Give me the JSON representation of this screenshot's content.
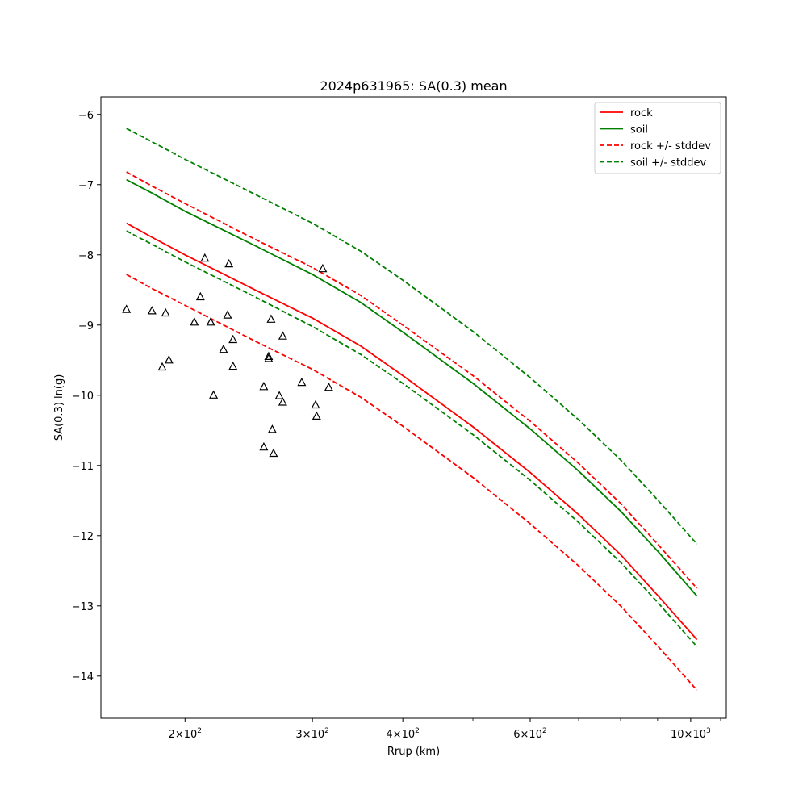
{
  "chart_data": {
    "type": "line",
    "title": "2024p631965: SA(0.3) mean",
    "xlabel": "Rrup (km)",
    "ylabel": "SA(0.3) ln(g)",
    "x_scale": "log",
    "xlim": [
      153,
      1120
    ],
    "ylim": [
      -14.6,
      -5.75
    ],
    "grid": false,
    "legend_position": "top-right",
    "x_ticks": [
      {
        "value": 200,
        "base": "2",
        "exp": "2"
      },
      {
        "value": 300,
        "base": "3",
        "exp": "2"
      },
      {
        "value": 400,
        "base": "4",
        "exp": "2"
      },
      {
        "value": 600,
        "base": "6",
        "exp": "2"
      },
      {
        "value": 1000,
        "base": "10",
        "exp": "3"
      }
    ],
    "y_ticks": [
      -6,
      -7,
      -8,
      -9,
      -10,
      -11,
      -12,
      -13,
      -14
    ],
    "series": [
      {
        "name": "rock",
        "color": "#ff0000",
        "dashed": false,
        "points": [
          [
            166,
            -7.55
          ],
          [
            180,
            -7.75
          ],
          [
            200,
            -8.0
          ],
          [
            250,
            -8.5
          ],
          [
            300,
            -8.9
          ],
          [
            350,
            -9.3
          ],
          [
            400,
            -9.72
          ],
          [
            500,
            -10.45
          ],
          [
            600,
            -11.1
          ],
          [
            700,
            -11.7
          ],
          [
            800,
            -12.27
          ],
          [
            900,
            -12.85
          ],
          [
            1020,
            -13.48
          ]
        ]
      },
      {
        "name": "soil",
        "color": "#008000",
        "dashed": false,
        "points": [
          [
            166,
            -6.93
          ],
          [
            180,
            -7.12
          ],
          [
            200,
            -7.38
          ],
          [
            250,
            -7.87
          ],
          [
            300,
            -8.28
          ],
          [
            350,
            -8.68
          ],
          [
            400,
            -9.1
          ],
          [
            500,
            -9.83
          ],
          [
            600,
            -10.48
          ],
          [
            700,
            -11.08
          ],
          [
            800,
            -11.65
          ],
          [
            900,
            -12.22
          ],
          [
            1020,
            -12.86
          ]
        ]
      },
      {
        "name": "rock +/- stddev",
        "color": "#ff0000",
        "dashed": true,
        "points": [
          [
            166,
            -6.82
          ],
          [
            180,
            -7.02
          ],
          [
            200,
            -7.27
          ],
          [
            250,
            -7.78
          ],
          [
            300,
            -8.18
          ],
          [
            350,
            -8.58
          ],
          [
            400,
            -9.0
          ],
          [
            500,
            -9.72
          ],
          [
            600,
            -10.37
          ],
          [
            700,
            -10.97
          ],
          [
            800,
            -11.54
          ],
          [
            900,
            -12.12
          ],
          [
            1020,
            -12.75
          ]
        ]
      },
      {
        "name": "rock +/- stddev",
        "color": "#ff0000",
        "dashed": true,
        "points": [
          [
            166,
            -8.28
          ],
          [
            180,
            -8.48
          ],
          [
            200,
            -8.72
          ],
          [
            250,
            -9.23
          ],
          [
            300,
            -9.63
          ],
          [
            350,
            -10.03
          ],
          [
            400,
            -10.44
          ],
          [
            500,
            -11.17
          ],
          [
            600,
            -11.83
          ],
          [
            700,
            -12.43
          ],
          [
            800,
            -13.0
          ],
          [
            900,
            -13.57
          ],
          [
            1020,
            -14.2
          ]
        ]
      },
      {
        "name": "soil +/- stddev",
        "color": "#008000",
        "dashed": true,
        "points": [
          [
            166,
            -6.2
          ],
          [
            180,
            -6.39
          ],
          [
            200,
            -6.64
          ],
          [
            250,
            -7.14
          ],
          [
            300,
            -7.55
          ],
          [
            350,
            -7.95
          ],
          [
            400,
            -8.36
          ],
          [
            500,
            -9.09
          ],
          [
            600,
            -9.75
          ],
          [
            700,
            -10.35
          ],
          [
            800,
            -10.92
          ],
          [
            900,
            -11.49
          ],
          [
            1020,
            -12.12
          ]
        ]
      },
      {
        "name": "soil +/- stddev",
        "color": "#008000",
        "dashed": true,
        "points": [
          [
            166,
            -7.66
          ],
          [
            180,
            -7.85
          ],
          [
            200,
            -8.1
          ],
          [
            250,
            -8.6
          ],
          [
            300,
            -9.02
          ],
          [
            350,
            -9.42
          ],
          [
            400,
            -9.83
          ],
          [
            500,
            -10.56
          ],
          [
            600,
            -11.21
          ],
          [
            700,
            -11.81
          ],
          [
            800,
            -12.38
          ],
          [
            900,
            -12.95
          ],
          [
            1020,
            -13.58
          ]
        ]
      }
    ],
    "observations": {
      "marker": "triangle",
      "color": "#000000",
      "points": [
        [
          166,
          -8.78
        ],
        [
          180,
          -8.8
        ],
        [
          188,
          -8.83
        ],
        [
          186,
          -9.6
        ],
        [
          190,
          -9.5
        ],
        [
          206,
          -8.96
        ],
        [
          210,
          -8.6
        ],
        [
          213,
          -8.05
        ],
        [
          217,
          -8.96
        ],
        [
          219,
          -10.0
        ],
        [
          226,
          -9.35
        ],
        [
          229,
          -8.86
        ],
        [
          230,
          -8.13
        ],
        [
          233,
          -9.21
        ],
        [
          233,
          -9.59
        ],
        [
          257,
          -9.88
        ],
        [
          257,
          -10.74
        ],
        [
          261,
          -9.45
        ],
        [
          261,
          -9.48
        ],
        [
          263,
          -8.92
        ],
        [
          264,
          -10.49
        ],
        [
          265,
          -10.83
        ],
        [
          270,
          -10.01
        ],
        [
          273,
          -10.1
        ],
        [
          273,
          -9.16
        ],
        [
          290,
          -9.82
        ],
        [
          303,
          -10.14
        ],
        [
          304,
          -10.3
        ],
        [
          310,
          -8.2
        ],
        [
          316,
          -9.89
        ]
      ]
    },
    "legend": [
      {
        "label": "rock",
        "color": "#ff0000",
        "dashed": false
      },
      {
        "label": "soil",
        "color": "#008000",
        "dashed": false
      },
      {
        "label": "rock +/- stddev",
        "color": "#ff0000",
        "dashed": true
      },
      {
        "label": "soil +/- stddev",
        "color": "#008000",
        "dashed": true
      }
    ]
  }
}
